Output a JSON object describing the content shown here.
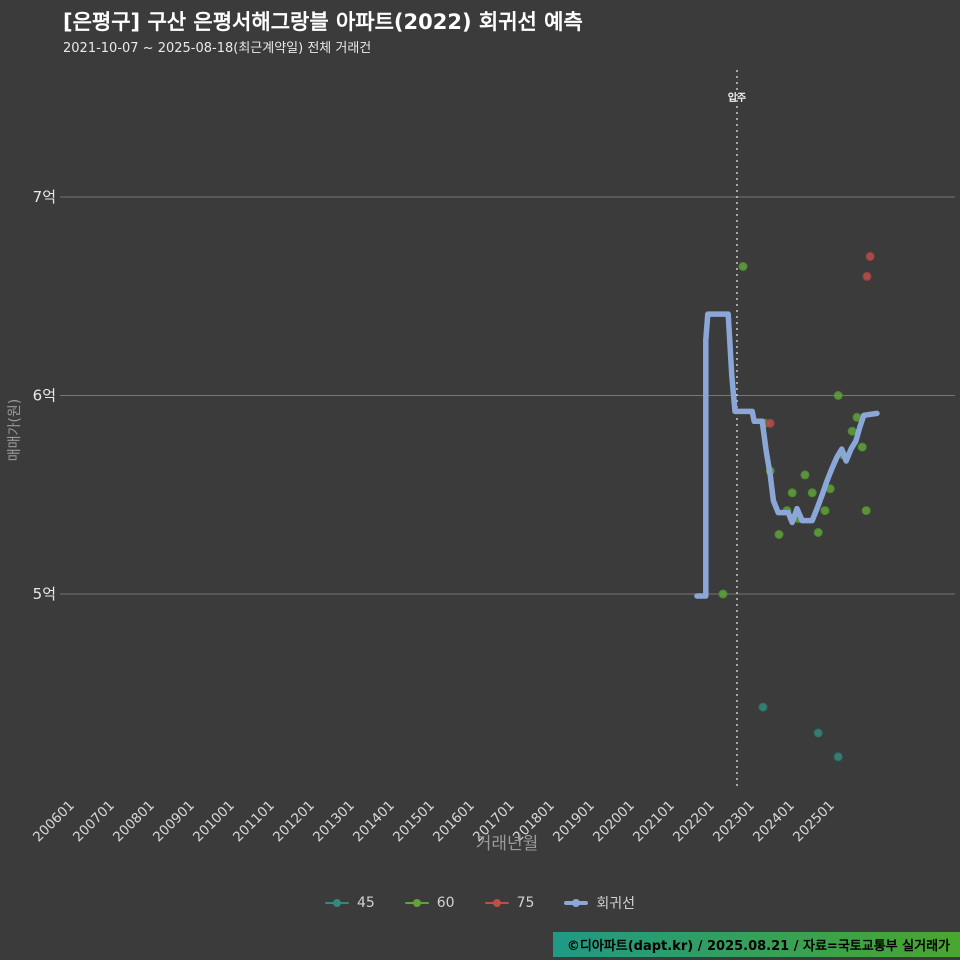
{
  "page": {
    "title": "[은평구] 구산 은평서해그랑블 아파트(2022) 회귀선 예측",
    "subtitle": "2021-10-07 ~ 2025-08-18(최근계약일) 전체 거래건"
  },
  "colors": {
    "background": "#3b3b3b",
    "grid": "#767676",
    "axis_text": "#d9d9d9",
    "axis_title": "#9a9a9a",
    "annotation_line": "#e0e0e0",
    "footer_gradient_left": "#1f9a86",
    "footer_gradient_right": "#4aa62e"
  },
  "footer": {
    "text": "©디아파트(dapt.kr) / 2025.08.21 / 자료=국토교통부 실거래가"
  },
  "chart_data": {
    "type": "scatter",
    "title": "[은평구] 구산 은평서해그랑블 아파트(2022) 회귀선 예측",
    "subtitle": "2021-10-07 ~ 2025-08-18(최근계약일) 전체 거래건",
    "xlabel": "거래년월",
    "ylabel": "매매가(원)",
    "y_unit": "억원",
    "ylim": [
      4.0,
      7.65
    ],
    "xlim": [
      2005.6,
      2028.0
    ],
    "grid": "horizontal",
    "legend_position": "bottom",
    "y_ticks": [
      {
        "label": "7억",
        "value": 7
      },
      {
        "label": "6억",
        "value": 6
      },
      {
        "label": "5억",
        "value": 5
      }
    ],
    "x_ticks": [
      {
        "year": 2006,
        "label": "200601"
      },
      {
        "year": 2007,
        "label": "200701"
      },
      {
        "year": 2008,
        "label": "200801"
      },
      {
        "year": 2009,
        "label": "200901"
      },
      {
        "year": 2010,
        "label": "201001"
      },
      {
        "year": 2011,
        "label": "201101"
      },
      {
        "year": 2012,
        "label": "201201"
      },
      {
        "year": 2013,
        "label": "201301"
      },
      {
        "year": 2014,
        "label": "201401"
      },
      {
        "year": 2015,
        "label": "201501"
      },
      {
        "year": 2016,
        "label": "201601"
      },
      {
        "year": 2017,
        "label": "201701"
      },
      {
        "year": 2018,
        "label": "201801"
      },
      {
        "year": 2019,
        "label": "201901"
      },
      {
        "year": 2020,
        "label": "202001"
      },
      {
        "year": 2021,
        "label": "202101"
      },
      {
        "year": 2022,
        "label": "202201"
      },
      {
        "year": 2023,
        "label": "202301"
      },
      {
        "year": 2024,
        "label": "202401"
      },
      {
        "year": 2025,
        "label": "202501"
      }
    ],
    "annotation": {
      "label": "입주",
      "x": 2022.55
    },
    "series": [
      {
        "name": "45",
        "type": "scatter",
        "color": "#35897c",
        "stroke": "#2a6f64",
        "points": [
          [
            2023.2,
            4.43
          ],
          [
            2024.58,
            4.3
          ],
          [
            2025.08,
            4.18
          ]
        ]
      },
      {
        "name": "60",
        "type": "scatter",
        "color": "#61a23c",
        "stroke": "#4c8a2e",
        "points": [
          [
            2022.2,
            5.0
          ],
          [
            2022.7,
            6.65
          ],
          [
            2023.25,
            5.86
          ],
          [
            2023.38,
            5.62
          ],
          [
            2023.6,
            5.3
          ],
          [
            2023.8,
            5.42
          ],
          [
            2023.93,
            5.51
          ],
          [
            2024.08,
            5.38
          ],
          [
            2024.25,
            5.6
          ],
          [
            2024.43,
            5.51
          ],
          [
            2024.58,
            5.31
          ],
          [
            2024.75,
            5.42
          ],
          [
            2024.88,
            5.53
          ],
          [
            2025.08,
            6.0
          ],
          [
            2025.2,
            5.7
          ],
          [
            2025.43,
            5.82
          ],
          [
            2025.55,
            5.89
          ],
          [
            2025.68,
            5.74
          ],
          [
            2025.78,
            5.42
          ]
        ]
      },
      {
        "name": "75",
        "type": "scatter",
        "color": "#b8504c",
        "stroke": "#9c403d",
        "points": [
          [
            2023.38,
            5.86
          ],
          [
            2025.8,
            6.6
          ],
          [
            2025.88,
            6.7
          ]
        ]
      },
      {
        "name": "회귀선",
        "type": "line",
        "color": "#8ba7d7",
        "points": [
          [
            2021.55,
            4.99
          ],
          [
            2021.77,
            4.99
          ],
          [
            2021.77,
            6.28
          ],
          [
            2021.82,
            6.41
          ],
          [
            2022.33,
            6.41
          ],
          [
            2022.42,
            6.1
          ],
          [
            2022.5,
            5.92
          ],
          [
            2022.93,
            5.92
          ],
          [
            2022.98,
            5.87
          ],
          [
            2023.18,
            5.87
          ],
          [
            2023.28,
            5.72
          ],
          [
            2023.38,
            5.6
          ],
          [
            2023.46,
            5.47
          ],
          [
            2023.58,
            5.41
          ],
          [
            2023.83,
            5.41
          ],
          [
            2023.93,
            5.36
          ],
          [
            2024.05,
            5.43
          ],
          [
            2024.18,
            5.37
          ],
          [
            2024.43,
            5.37
          ],
          [
            2024.55,
            5.43
          ],
          [
            2024.68,
            5.5
          ],
          [
            2024.8,
            5.57
          ],
          [
            2024.92,
            5.63
          ],
          [
            2025.05,
            5.69
          ],
          [
            2025.17,
            5.73
          ],
          [
            2025.28,
            5.67
          ],
          [
            2025.4,
            5.73
          ],
          [
            2025.52,
            5.77
          ],
          [
            2025.62,
            5.84
          ],
          [
            2025.72,
            5.9
          ],
          [
            2026.05,
            5.91
          ]
        ]
      }
    ]
  }
}
